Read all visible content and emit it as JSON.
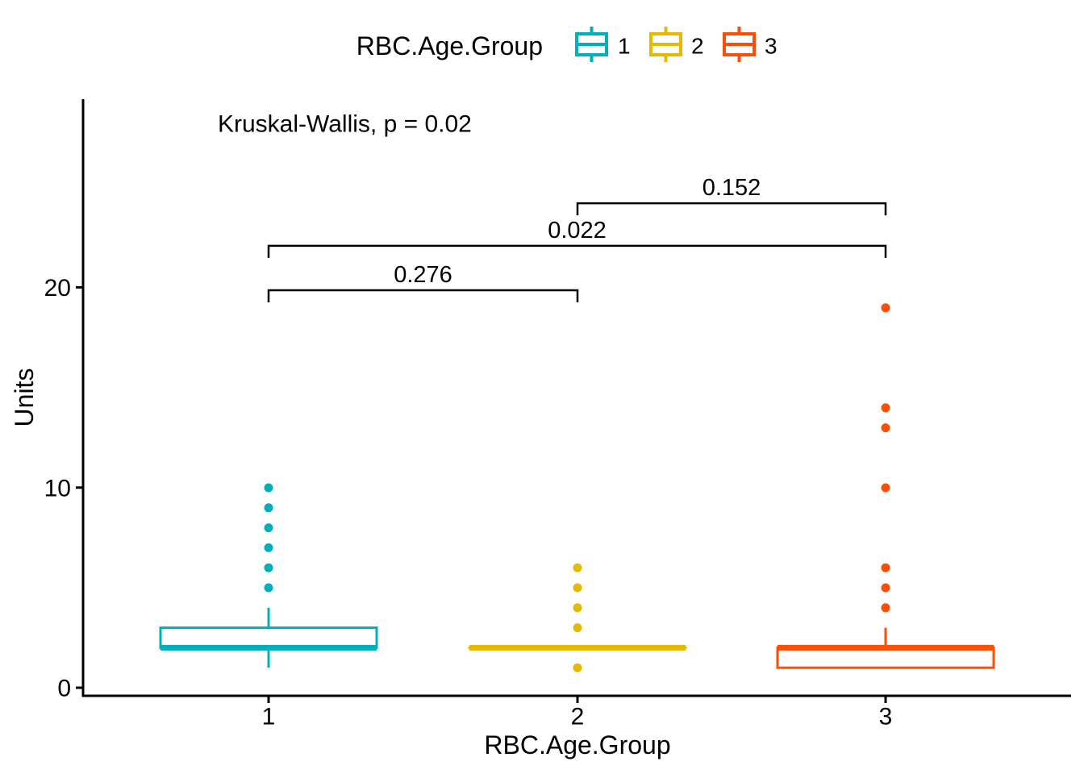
{
  "figure": {
    "background": "#FFFFFF",
    "text_color": "#000000",
    "axis_color": "#000000"
  },
  "legend": {
    "title": "RBC.Age.Group",
    "position": "top",
    "items": [
      {
        "label": "1",
        "color": "#00AFBB"
      },
      {
        "label": "2",
        "color": "#E7B800"
      },
      {
        "label": "3",
        "color": "#FC4E07"
      }
    ]
  },
  "chart_data": {
    "type": "boxplot",
    "subtitle": "Kruskal-Wallis, p = 0.02",
    "xlabel": "RBC.Age.Group",
    "ylabel": "Units",
    "x_categories": [
      "1",
      "2",
      "3"
    ],
    "y_ticks": [
      "0",
      "10",
      "20"
    ],
    "y_tick_values": [
      0,
      10,
      20
    ],
    "ylim": [
      -0.4,
      29.4
    ],
    "grid": false,
    "legend_position": "top",
    "series": [
      {
        "name": "1",
        "color": "#00AFBB",
        "whisker_low": 1,
        "q1": 2,
        "median": 2,
        "q3": 3,
        "whisker_high": 4,
        "outliers": [
          5,
          6,
          7,
          8,
          9,
          10
        ]
      },
      {
        "name": "2",
        "color": "#E7B800",
        "whisker_low": 2,
        "q1": 2,
        "median": 2,
        "q3": 2,
        "whisker_high": 2,
        "outliers": [
          1,
          3,
          4,
          5,
          6
        ]
      },
      {
        "name": "3",
        "color": "#FC4E07",
        "whisker_low": 1,
        "q1": 1,
        "median": 2,
        "q3": 2,
        "whisker_high": 3,
        "outliers": [
          4,
          5,
          6,
          10,
          13,
          14,
          19
        ]
      }
    ],
    "comparisons": [
      {
        "group1": "1",
        "group2": "2",
        "p_label": "0.276",
        "y_value": 19.88
      },
      {
        "group1": "1",
        "group2": "3",
        "p_label": "0.022",
        "y_value": 22.1
      },
      {
        "group1": "2",
        "group2": "3",
        "p_label": "0.152",
        "y_value": 24.23
      }
    ]
  }
}
